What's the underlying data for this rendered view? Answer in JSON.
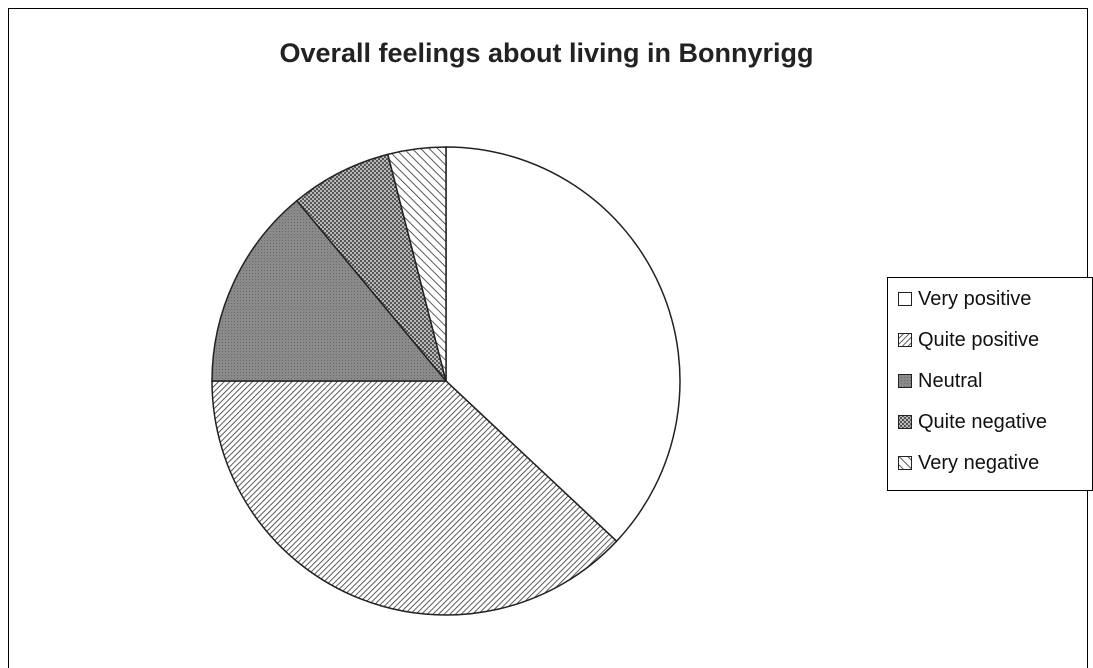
{
  "chart_data": {
    "type": "pie",
    "title": "Overall feelings about living in Bonnyrigg",
    "categories": [
      "Very positive",
      "Quite positive",
      "Neutral",
      "Quite negative",
      "Very negative"
    ],
    "values": [
      37,
      38,
      14,
      7,
      4
    ],
    "legend_position": "right",
    "colors": {
      "Very positive": "#ffffff",
      "Quite positive": "#555555",
      "Neutral": "#888888",
      "Quite negative": "#777777",
      "Very negative": "#444444"
    },
    "patterns": [
      "blank",
      "diagonal-hatch-dense",
      "solid-grey",
      "dotted-grey",
      "diagonal-hatch-wide"
    ]
  }
}
